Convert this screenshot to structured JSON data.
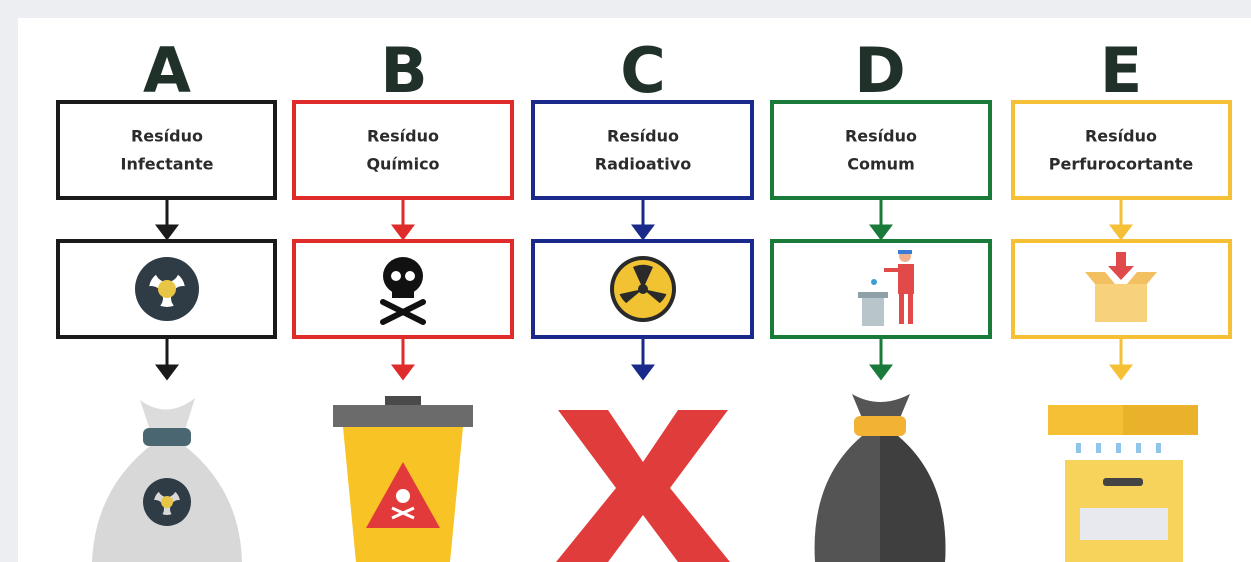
{
  "columns": [
    {
      "letter": "A",
      "label": [
        "Resíduo",
        "Infectante"
      ]
    },
    {
      "letter": "B",
      "label": [
        "Resíduo",
        "Químico"
      ]
    },
    {
      "letter": "C",
      "label": [
        "Resíduo",
        "Radioativo"
      ]
    },
    {
      "letter": "D",
      "label": [
        "Resíduo",
        "Comum"
      ]
    },
    {
      "letter": "E",
      "label": [
        "Resíduo",
        "Perfurocortante"
      ]
    }
  ]
}
